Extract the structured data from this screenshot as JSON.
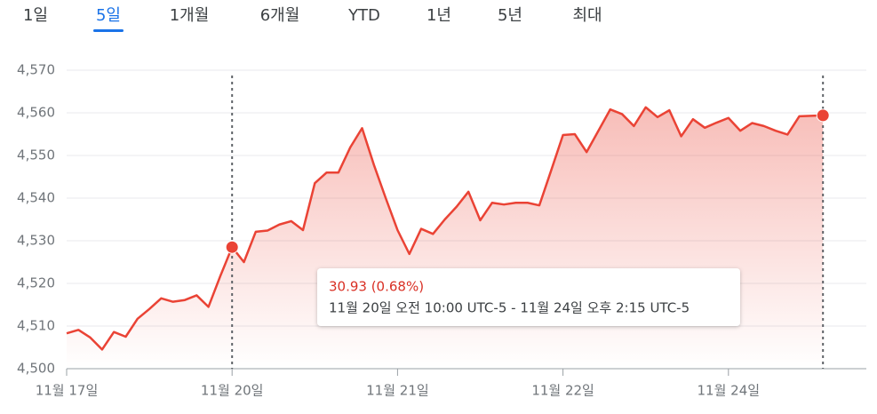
{
  "tabs": [
    "1일",
    "5일",
    "1개월",
    "6개월",
    "YTD",
    "1년",
    "5년",
    "최대"
  ],
  "selected_tab": 1,
  "chart_data": {
    "type": "area",
    "categories": [
      "11월 17일",
      null,
      null,
      null,
      null,
      null,
      null,
      null,
      null,
      null,
      null,
      null,
      null,
      null,
      "11월 20일",
      null,
      null,
      null,
      null,
      null,
      null,
      null,
      null,
      null,
      null,
      null,
      null,
      null,
      "11월 21일",
      null,
      null,
      null,
      null,
      null,
      null,
      null,
      null,
      null,
      null,
      null,
      null,
      null,
      "11월 22일",
      null,
      null,
      null,
      null,
      null,
      null,
      null,
      null,
      null,
      null,
      null,
      null,
      null,
      "11월 24일",
      null,
      null,
      null,
      null,
      null,
      null,
      null,
      null
    ],
    "values": [
      4508.3,
      4509.1,
      4507.3,
      4504.5,
      4508.6,
      4507.5,
      4511.7,
      4514.0,
      4516.5,
      4515.7,
      4516.1,
      4517.2,
      4514.5,
      4521.7,
      4528.5,
      4525.0,
      4532.1,
      4532.4,
      4533.8,
      4534.6,
      4532.5,
      4543.5,
      4546.0,
      4546.0,
      4551.9,
      4556.4,
      4547.8,
      4540.0,
      4532.5,
      4526.9,
      4532.8,
      4531.6,
      4535.0,
      4538.0,
      4541.5,
      4534.8,
      4538.9,
      4538.5,
      4538.9,
      4538.9,
      4538.3,
      4546.5,
      4554.8,
      4555.0,
      4550.8,
      4555.8,
      4560.8,
      4559.7,
      4556.9,
      4561.3,
      4559.0,
      4560.6,
      4554.5,
      4558.5,
      4556.5,
      4557.7,
      4558.8,
      4555.8,
      4557.6,
      4556.9,
      4555.8,
      4554.9,
      4559.2,
      4559.3,
      4559.4
    ],
    "color": "#ea4335",
    "ylim": [
      4500,
      4570
    ],
    "yticks": [
      {
        "value": 4500,
        "label": "4,500"
      },
      {
        "value": 4510,
        "label": "4,510"
      },
      {
        "value": 4520,
        "label": "4,520"
      },
      {
        "value": 4530,
        "label": "4,530"
      },
      {
        "value": 4540,
        "label": "4,540"
      },
      {
        "value": 4550,
        "label": "4,550"
      },
      {
        "value": 4560,
        "label": "4,560"
      },
      {
        "value": 4570,
        "label": "4,570"
      }
    ],
    "grid": true,
    "selection": [
      14,
      64
    ],
    "annotation": {
      "change": "30.93 (0.68%)",
      "range": "11월 20일 오전 10:00 UTC-5 - 11월 24일 오후 2:15 UTC-5"
    }
  }
}
